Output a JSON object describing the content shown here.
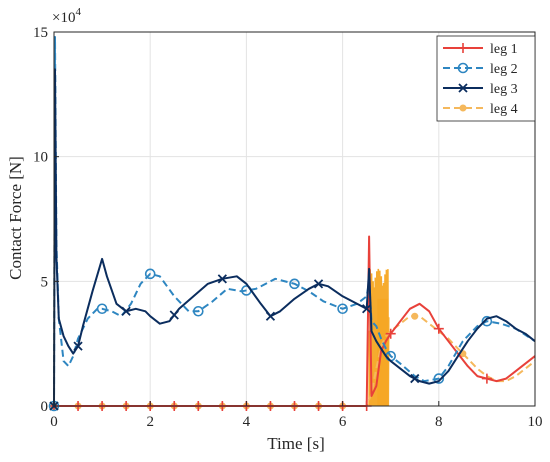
{
  "chart_data": {
    "type": "line",
    "xlabel": "Time [s]",
    "ylabel": "Contact Force [N]",
    "y_multiplier": "×10",
    "y_multiplier_exp": "4",
    "xlim": [
      0,
      10
    ],
    "ylim": [
      0,
      15
    ],
    "xticks": [
      "0",
      "2",
      "4",
      "6",
      "8",
      "10"
    ],
    "yticks": [
      "0",
      "5",
      "10",
      "15"
    ],
    "grid": true,
    "legend_position": "top-right",
    "series": [
      {
        "name": "leg 1",
        "color": "#e8413a",
        "dash": "solid",
        "marker": "plus",
        "x": [
          0,
          0.5,
          1,
          1.5,
          2,
          2.5,
          3,
          3.5,
          4,
          4.5,
          5,
          5.5,
          6,
          6.5,
          6.55,
          6.6,
          6.7,
          6.8,
          6.9,
          7.0,
          7.2,
          7.4,
          7.6,
          7.8,
          8.0,
          8.2,
          8.4,
          8.6,
          8.8,
          9.0,
          9.2,
          9.4,
          9.6,
          9.8,
          10.0
        ],
        "y": [
          0,
          0,
          0,
          0,
          0,
          0,
          0,
          0,
          0,
          0,
          0,
          0,
          0,
          0,
          6.8,
          0.4,
          0.8,
          2.2,
          2.6,
          2.9,
          3.4,
          3.9,
          4.1,
          3.8,
          3.1,
          2.6,
          2.1,
          1.6,
          1.2,
          1.1,
          1.0,
          1.1,
          1.4,
          1.7,
          2.0
        ],
        "marker_x": [
          0,
          0.5,
          1,
          1.5,
          2,
          2.5,
          3,
          3.5,
          4,
          4.5,
          5,
          5.5,
          6,
          6.5,
          7.0,
          8.0,
          9.0
        ]
      },
      {
        "name": "leg 2",
        "color": "#2e86c1",
        "dash": "dashed",
        "marker": "circle",
        "x": [
          0,
          0.02,
          0.05,
          0.1,
          0.2,
          0.3,
          0.4,
          0.5,
          0.7,
          0.9,
          1.0,
          1.2,
          1.4,
          1.6,
          1.8,
          2.0,
          2.2,
          2.5,
          2.8,
          3.0,
          3.3,
          3.6,
          3.9,
          4.2,
          4.6,
          5.0,
          5.3,
          5.6,
          6.0,
          6.3,
          6.5,
          6.55,
          6.6,
          6.7,
          6.8,
          6.9,
          7.0,
          7.2,
          7.5,
          7.7,
          8.0,
          8.2,
          8.5,
          8.8,
          9.0,
          9.3,
          9.6,
          10.0
        ],
        "y": [
          0,
          14.8,
          6.5,
          3.5,
          1.8,
          1.6,
          2.0,
          2.7,
          3.5,
          3.9,
          3.9,
          3.8,
          3.6,
          4.1,
          4.9,
          5.3,
          5.2,
          4.4,
          3.8,
          3.8,
          4.2,
          4.7,
          4.6,
          4.7,
          5.1,
          4.9,
          4.6,
          4.2,
          3.9,
          4.1,
          4.4,
          5.0,
          3.4,
          3.2,
          2.7,
          2.3,
          2.0,
          1.7,
          1.2,
          1.0,
          1.1,
          1.6,
          2.6,
          3.2,
          3.4,
          3.3,
          3.1,
          2.6
        ],
        "marker_x": [
          0,
          1.0,
          2.0,
          3.0,
          4.0,
          5.0,
          6.0,
          7.0,
          8.0,
          9.0
        ]
      },
      {
        "name": "leg 3",
        "color": "#0b2d5e",
        "dash": "solid",
        "marker": "x",
        "x": [
          0,
          0.02,
          0.05,
          0.1,
          0.2,
          0.3,
          0.4,
          0.5,
          0.6,
          0.8,
          1.0,
          1.1,
          1.3,
          1.5,
          1.7,
          1.9,
          2.0,
          2.2,
          2.4,
          2.6,
          2.9,
          3.2,
          3.5,
          3.8,
          4.0,
          4.3,
          4.5,
          4.7,
          5.0,
          5.3,
          5.5,
          5.7,
          6.0,
          6.3,
          6.5,
          6.55,
          6.6,
          6.7,
          6.8,
          6.9,
          7.0,
          7.2,
          7.4,
          7.6,
          7.8,
          8.0,
          8.2,
          8.4,
          8.6,
          8.8,
          9.0,
          9.2,
          9.4,
          9.6,
          9.8,
          10.0
        ],
        "y": [
          0,
          13.5,
          6.0,
          3.5,
          2.8,
          2.4,
          2.1,
          2.4,
          3.2,
          4.6,
          5.9,
          5.2,
          4.1,
          3.8,
          3.9,
          3.8,
          3.6,
          3.3,
          3.4,
          3.9,
          4.4,
          4.9,
          5.1,
          5.2,
          4.9,
          4.1,
          3.6,
          3.8,
          4.3,
          4.7,
          4.9,
          4.8,
          4.4,
          4.1,
          3.9,
          5.5,
          3.0,
          2.6,
          2.3,
          2.0,
          1.8,
          1.5,
          1.2,
          1.0,
          0.9,
          1.0,
          1.4,
          2.0,
          2.6,
          3.1,
          3.5,
          3.6,
          3.4,
          3.1,
          2.9,
          2.6
        ],
        "marker_x": [
          0,
          0.5,
          1.5,
          2.5,
          3.5,
          4.5,
          5.5,
          6.5,
          7.5
        ]
      },
      {
        "name": "leg 4",
        "color": "#f5b85c",
        "dash": "dashed",
        "marker": "dot",
        "x": [
          0,
          0.5,
          1,
          1.5,
          2,
          2.5,
          3,
          3.5,
          4,
          4.5,
          5,
          5.5,
          6,
          6.5,
          6.6,
          6.7,
          6.8,
          6.9,
          7.0,
          7.2,
          7.4,
          7.6,
          7.8,
          8.0,
          8.2,
          8.4,
          8.6,
          8.8,
          9.0,
          9.2,
          9.4,
          9.6,
          9.8,
          10.0
        ],
        "y": [
          0,
          0,
          0,
          0,
          0,
          0,
          0,
          0,
          0,
          0,
          0,
          0,
          0,
          0,
          0.5,
          1.5,
          2.4,
          2.8,
          3.0,
          3.3,
          3.6,
          3.6,
          3.3,
          3.0,
          2.7,
          2.3,
          1.9,
          1.5,
          1.2,
          1.0,
          1.0,
          1.2,
          1.5,
          1.8
        ],
        "marker_x": [
          0,
          0.5,
          1,
          1.5,
          2,
          2.5,
          3,
          3.5,
          4,
          4.5,
          5,
          5.5,
          6,
          7.5,
          8.5
        ]
      }
    ],
    "burst": {
      "x_range": [
        6.55,
        6.95
      ],
      "y_range": [
        0,
        5.5
      ],
      "color": "#f5a623"
    }
  }
}
